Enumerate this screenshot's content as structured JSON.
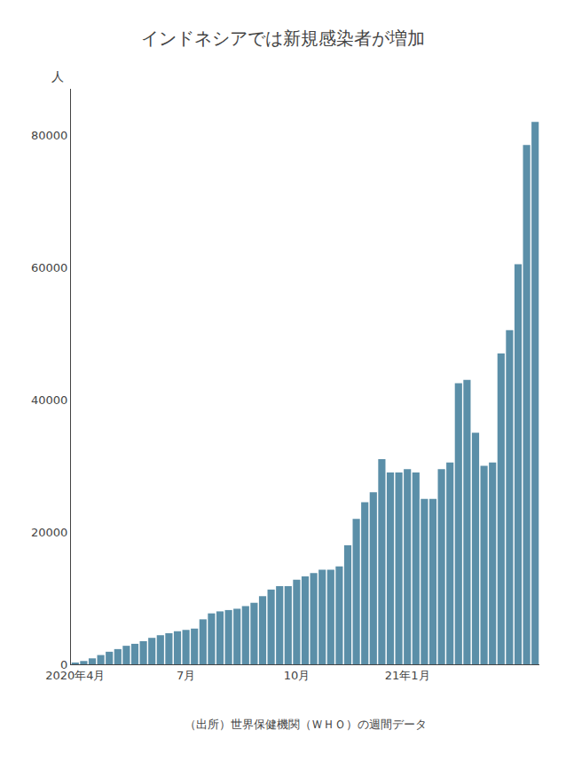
{
  "chart_data": {
    "type": "bar",
    "title": "インドネシアでは新規感染者が増加",
    "ylabel": "人",
    "annotations": [
      "（出所）世界保健機関（ＷＨＯ）の週間データ"
    ],
    "color": "#5b8fa8",
    "grid": false,
    "ylim": [
      0,
      87000
    ],
    "yticks": [
      0,
      20000,
      40000,
      60000,
      80000
    ],
    "categories": [
      "2020年4月",
      null,
      null,
      null,
      null,
      null,
      null,
      null,
      null,
      null,
      null,
      null,
      null,
      "7月",
      null,
      null,
      null,
      null,
      null,
      null,
      null,
      null,
      null,
      null,
      null,
      null,
      "10月",
      null,
      null,
      null,
      null,
      null,
      null,
      null,
      null,
      null,
      null,
      null,
      null,
      "21年1月",
      null,
      null,
      null,
      null,
      null,
      null,
      null,
      null,
      null,
      null,
      null,
      null,
      null,
      null,
      null
    ],
    "values": [
      200,
      500,
      900,
      1400,
      1900,
      2300,
      2800,
      3100,
      3500,
      4000,
      4400,
      4700,
      5000,
      5200,
      5400,
      6800,
      7700,
      8000,
      8200,
      8400,
      8800,
      9300,
      10300,
      11300,
      11800,
      11800,
      12800,
      13300,
      13800,
      14300,
      14300,
      14800,
      18000,
      22000,
      24500,
      26000,
      31000,
      29000,
      29000,
      29500,
      29000,
      25000,
      25000,
      29500,
      30500,
      42500,
      43000,
      35000,
      30000,
      30500,
      47000,
      50500,
      60500,
      78500,
      82000
    ]
  }
}
